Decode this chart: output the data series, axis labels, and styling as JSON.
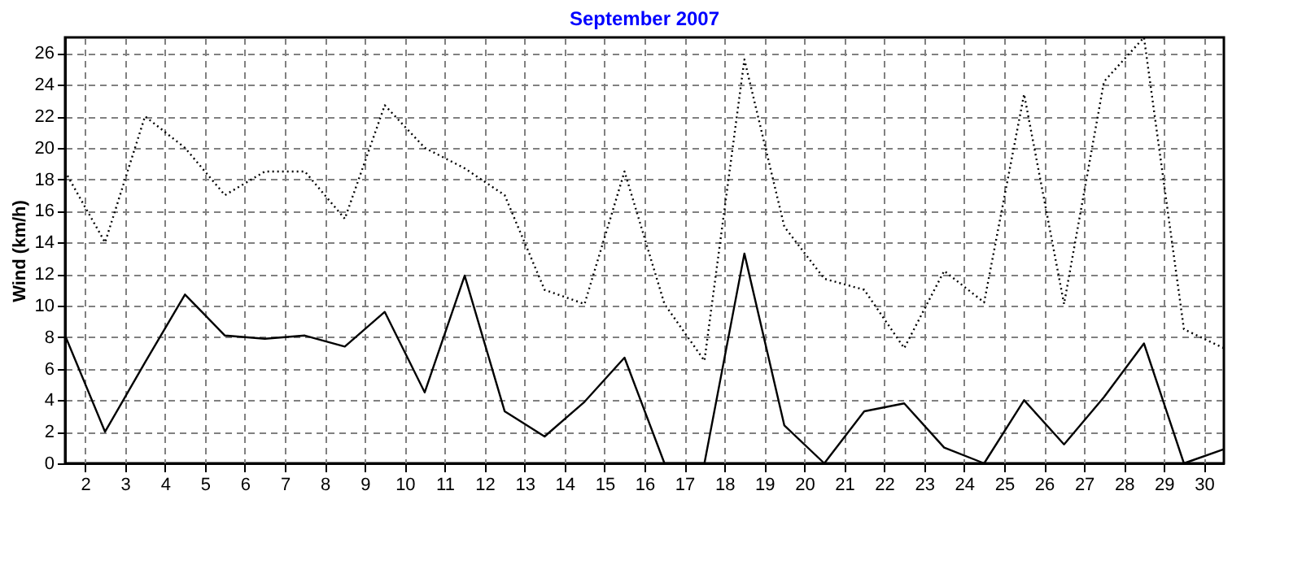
{
  "chart_data": {
    "type": "line",
    "title": "September 2007",
    "ylabel": "Wind  (km/h)",
    "x": [
      1.5,
      2.5,
      3.5,
      4.5,
      5.5,
      6.5,
      7.5,
      8.5,
      9.5,
      10.5,
      11.5,
      12.5,
      13.5,
      14.5,
      15.5,
      16.5,
      17.5,
      18.5,
      19.5,
      20.5,
      21.5,
      22.5,
      23.5,
      24.5,
      25.5,
      26.5,
      27.5,
      28.5,
      29.5,
      30.5
    ],
    "series": [
      {
        "color": "#000000",
        "line_style": "dotted",
        "values": [
          18.5,
          14.0,
          22.0,
          20.0,
          17.0,
          18.5,
          18.5,
          15.5,
          22.7,
          20.0,
          18.7,
          17.0,
          11.0,
          10.1,
          18.5,
          10.1,
          6.5,
          25.6,
          15.0,
          11.7,
          11.0,
          7.3,
          12.2,
          10.2,
          23.4,
          10.1,
          24.2,
          27.0,
          8.5,
          7.3
        ]
      },
      {
        "color": "#000000",
        "line_style": "solid",
        "values": [
          8.1,
          2.0,
          6.4,
          10.7,
          8.1,
          7.9,
          8.1,
          7.4,
          9.6,
          4.5,
          11.9,
          3.3,
          1.7,
          3.9,
          6.7,
          0,
          0,
          13.3,
          2.4,
          0,
          3.3,
          3.8,
          1.0,
          0,
          4.0,
          1.2,
          4.2,
          7.6,
          0,
          0.9
        ]
      }
    ],
    "xlim": [
      1.5,
      30.5
    ],
    "xticks": [
      2,
      3,
      4,
      5,
      6,
      7,
      8,
      9,
      10,
      11,
      12,
      13,
      14,
      15,
      16,
      17,
      18,
      19,
      20,
      21,
      22,
      23,
      24,
      25,
      26,
      27,
      28,
      29,
      30
    ],
    "ylim": [
      0,
      27
    ],
    "yticks": [
      0,
      2,
      4,
      6,
      8,
      10,
      12,
      14,
      16,
      18,
      20,
      22,
      24,
      26
    ],
    "grid": true,
    "marker": "none"
  }
}
